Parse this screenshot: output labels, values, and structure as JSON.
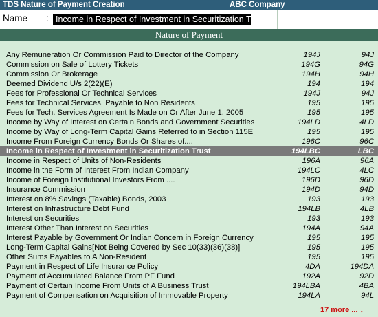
{
  "window": {
    "title": "TDS Nature of Payment  Creation",
    "company": "ABC Company"
  },
  "name_field": {
    "label": "Name",
    "colon": ":",
    "value": "Income in Respect of Investment in Securitization Trust"
  },
  "list": {
    "header": "Nature of Payment",
    "selected_index": 11,
    "rows": [
      {
        "desc": "Any Remuneration Or Commission Paid to Director of the Company",
        "section": "194J",
        "code": "94J"
      },
      {
        "desc": "Commission on Sale of Lottery Tickets",
        "section": "194G",
        "code": "94G"
      },
      {
        "desc": "Commission Or Brokerage",
        "section": "194H",
        "code": "94H"
      },
      {
        "desc": "Deemed Dividend U/s 2(22)(E)",
        "section": "194",
        "code": "194"
      },
      {
        "desc": "Fees for Professional Or Technical Services",
        "section": "194J",
        "code": "94J"
      },
      {
        "desc": "Fees for Technical Services, Payable to Non Residents",
        "section": "195",
        "code": "195"
      },
      {
        "desc": "Fees for Tech. Services Agreement Is Made on Or After June 1, 2005",
        "section": "195",
        "code": "195"
      },
      {
        "desc": "Income by Way of Interest on Certain Bonds and Government Securities",
        "section": "194LD",
        "code": "4LD"
      },
      {
        "desc": "Income by Way of Long-Term Capital Gains Referred to in Section 115E",
        "section": "195",
        "code": "195"
      },
      {
        "desc": "Income From Foreign Currency Bonds Or Shares of....",
        "section": "196C",
        "code": "96C"
      },
      {
        "desc": "Income in Respect of Investment in Securitization Trust",
        "section": "194LBC",
        "code": "LBC"
      },
      {
        "desc": "Income in Respect of Units of Non-Residents",
        "section": "196A",
        "code": "96A"
      },
      {
        "desc": "Income in the Form of Interest From Indian Company",
        "section": "194LC",
        "code": "4LC"
      },
      {
        "desc": "Income of Foreign Institutional Investors From ....",
        "section": "196D",
        "code": "96D"
      },
      {
        "desc": "Insurance Commission",
        "section": "194D",
        "code": "94D"
      },
      {
        "desc": "Interest on 8% Savings (Taxable) Bonds, 2003",
        "section": "193",
        "code": "193"
      },
      {
        "desc": "Interest on Infrastructure Debt Fund",
        "section": "194LB",
        "code": "4LB"
      },
      {
        "desc": "Interest on Securities",
        "section": "193",
        "code": "193"
      },
      {
        "desc": "Interest Other Than Interest on Securities",
        "section": "194A",
        "code": "94A"
      },
      {
        "desc": "Interest Payable by Government Or Indian Concern in Foreign Currency",
        "section": "195",
        "code": "195"
      },
      {
        "desc": "Long-Term Capital Gains[Not Being Covered by Sec 10(33)(36)(38)]",
        "section": "195",
        "code": "195"
      },
      {
        "desc": "Other Sums Payables to A Non-Resident",
        "section": "195",
        "code": "195"
      },
      {
        "desc": "Payment in Respect of Life Insurance Policy",
        "section": "4DA",
        "code": "194DA"
      },
      {
        "desc": "Payment of Accumulated Balance From PF Fund",
        "section": "192A",
        "code": "92D"
      },
      {
        "desc": "Payment of Certain Income From Units of A Business Trust",
        "section": "194LBA",
        "code": "4BA"
      },
      {
        "desc": "Payment of Compensation on Acquisition of Immovable Property",
        "section": "194LA",
        "code": "94L"
      }
    ],
    "more_label": "17 more ... ↓"
  }
}
